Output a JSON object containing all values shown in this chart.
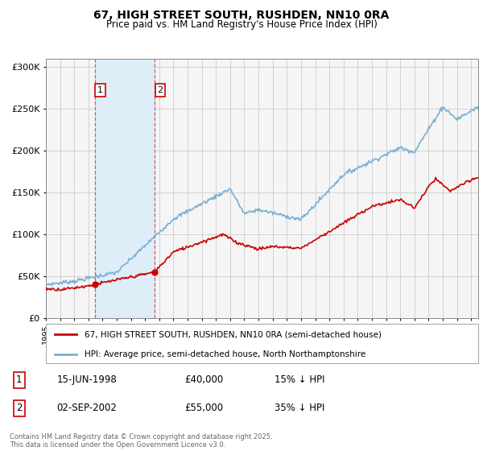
{
  "title": "67, HIGH STREET SOUTH, RUSHDEN, NN10 0RA",
  "subtitle": "Price paid vs. HM Land Registry's House Price Index (HPI)",
  "ylim": [
    0,
    310000
  ],
  "yticks": [
    0,
    50000,
    100000,
    150000,
    200000,
    250000,
    300000
  ],
  "ytick_labels": [
    "£0",
    "£50K",
    "£100K",
    "£150K",
    "£200K",
    "£250K",
    "£300K"
  ],
  "legend_line1": "67, HIGH STREET SOUTH, RUSHDEN, NN10 0RA (semi-detached house)",
  "legend_line2": "HPI: Average price, semi-detached house, North Northamptonshire",
  "annotation1_date": "15-JUN-1998",
  "annotation1_price": "£40,000",
  "annotation1_hpi": "15% ↓ HPI",
  "annotation2_date": "02-SEP-2002",
  "annotation2_price": "£55,000",
  "annotation2_hpi": "35% ↓ HPI",
  "copyright": "Contains HM Land Registry data © Crown copyright and database right 2025.\nThis data is licensed under the Open Government Licence v3.0.",
  "line_color_property": "#cc0000",
  "line_color_hpi": "#7ab0d4",
  "shading_color": "#ddeef8",
  "grid_color": "#cccccc",
  "background_color": "#f5f5f5",
  "purchase1_year": 1998.45,
  "purchase1_value": 40000,
  "purchase2_year": 2002.67,
  "purchase2_value": 55000
}
